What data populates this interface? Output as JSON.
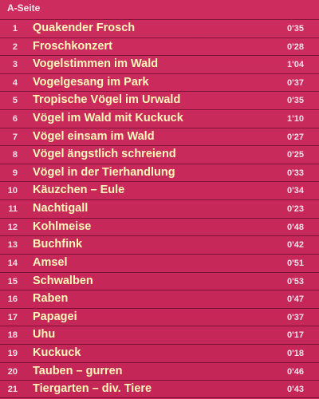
{
  "side_label": "A-Seite",
  "tracks": [
    {
      "num": "1",
      "title": "Quakender Frosch",
      "time": "0'35"
    },
    {
      "num": "2",
      "title": "Froschkonzert",
      "time": "0'28"
    },
    {
      "num": "3",
      "title": "Vogelstimmen im Wald",
      "time": "1'04"
    },
    {
      "num": "4",
      "title": "Vogelgesang im Park",
      "time": "0'37"
    },
    {
      "num": "5",
      "title": "Tropische Vögel im Urwald",
      "time": "0'35"
    },
    {
      "num": "6",
      "title": "Vögel im Wald mit Kuckuck",
      "time": "1'10"
    },
    {
      "num": "7",
      "title": "Vögel einsam im Wald",
      "time": "0'27"
    },
    {
      "num": "8",
      "title": "Vögel ängstlich schreiend",
      "time": "0'25"
    },
    {
      "num": "9",
      "title": "Vögel in der Tierhandlung",
      "time": "0'33"
    },
    {
      "num": "10",
      "title": "Käuzchen – Eule",
      "time": "0'34"
    },
    {
      "num": "11",
      "title": "Nachtigall",
      "time": "0'23"
    },
    {
      "num": "12",
      "title": "Kohlmeise",
      "time": "0'48"
    },
    {
      "num": "13",
      "title": "Buchfink",
      "time": "0'42"
    },
    {
      "num": "14",
      "title": "Amsel",
      "time": "0'51"
    },
    {
      "num": "15",
      "title": "Schwalben",
      "time": "0'53"
    },
    {
      "num": "16",
      "title": "Raben",
      "time": "0'47"
    },
    {
      "num": "17",
      "title": "Papagei",
      "time": "0'37"
    },
    {
      "num": "18",
      "title": "Uhu",
      "time": "0'17"
    },
    {
      "num": "19",
      "title": "Kuckuck",
      "time": "0'18"
    },
    {
      "num": "20",
      "title": "Tauben – gurren",
      "time": "0'46"
    },
    {
      "num": "21",
      "title": "Tiergarten – div. Tiere",
      "time": "0'43"
    }
  ]
}
